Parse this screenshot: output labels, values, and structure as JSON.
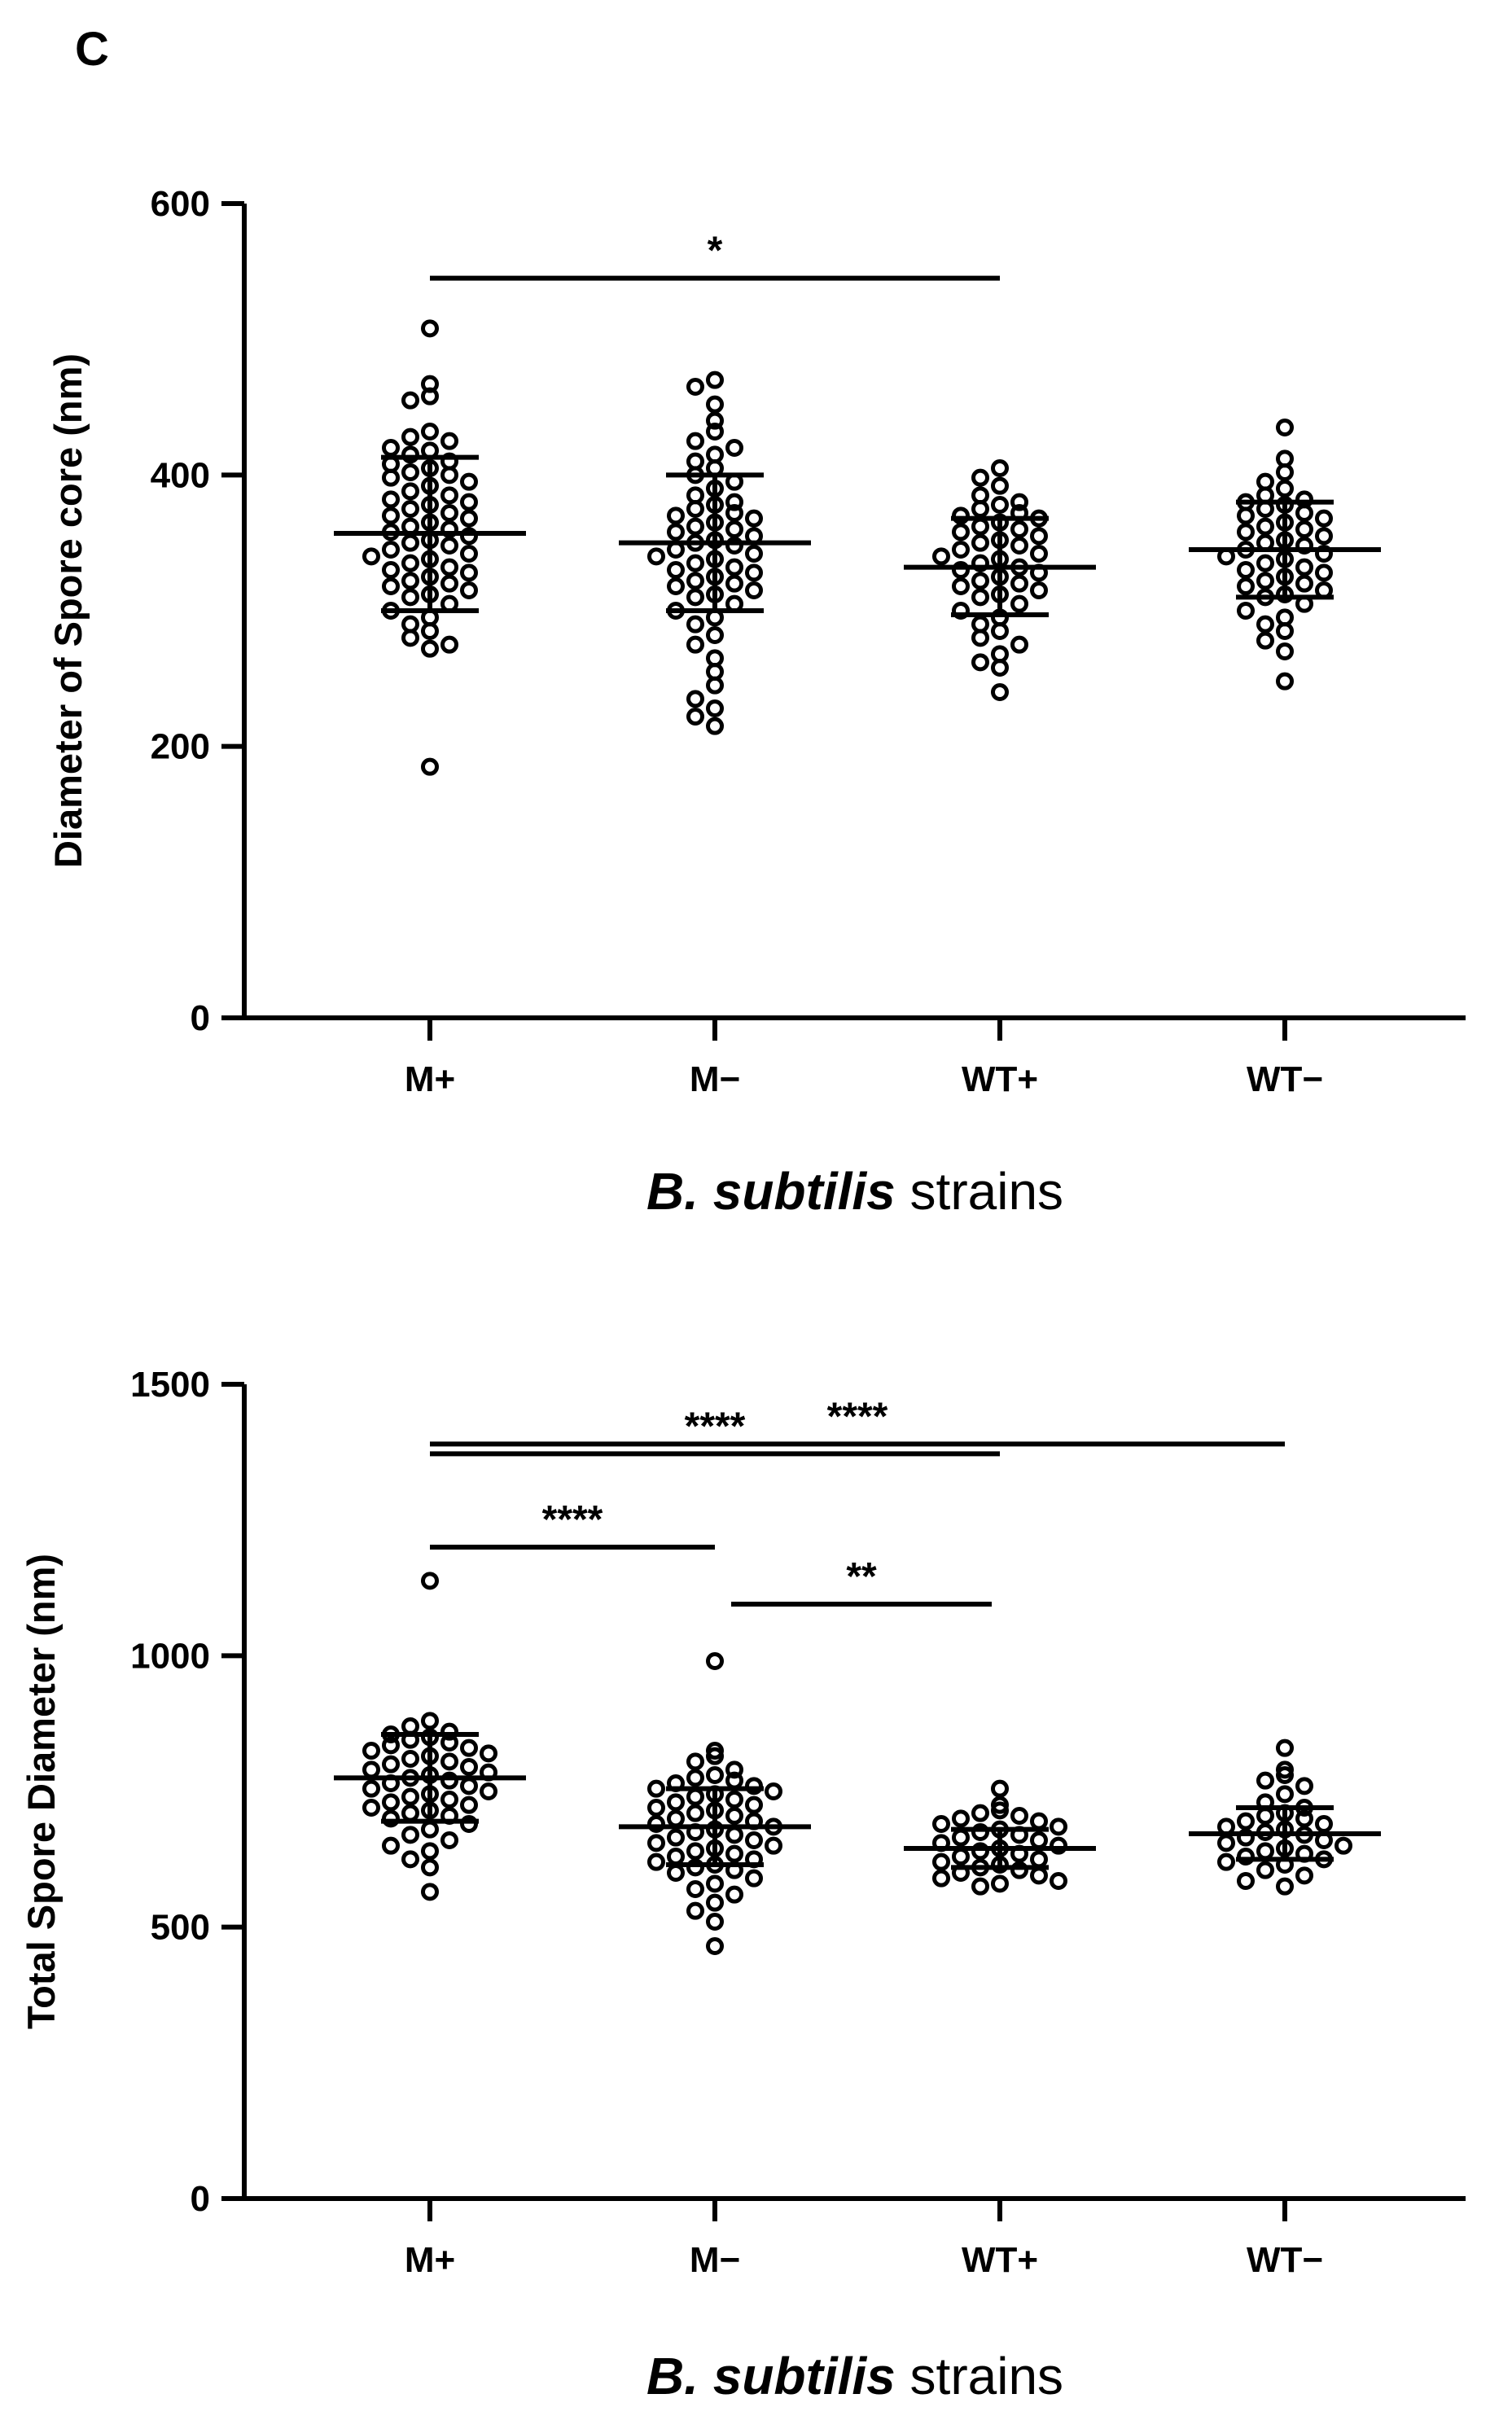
{
  "panel_label": "C",
  "chart_data": [
    {
      "type": "scatter",
      "ylabel": "Diameter of Spore core (nm)",
      "xlabel_italic": "B. subtilis",
      "xlabel_rest": " strains",
      "ylim": [
        0,
        600
      ],
      "yticks": [
        0,
        200,
        400,
        600
      ],
      "ytick_labels": [
        "0",
        "200",
        "400",
        "600"
      ],
      "categories": [
        "M+",
        "M−",
        "WT+",
        "WT−"
      ],
      "series": [
        {
          "values": [
            508,
            467,
            458,
            455,
            432,
            428,
            425,
            420,
            418,
            415,
            410,
            408,
            405,
            402,
            400,
            398,
            395,
            392,
            388,
            385,
            382,
            380,
            378,
            375,
            372,
            370,
            368,
            365,
            362,
            360,
            358,
            355,
            352,
            350,
            348,
            345,
            342,
            340,
            338,
            335,
            332,
            330,
            328,
            325,
            322,
            320,
            318,
            315,
            312,
            310,
            305,
            300,
            295,
            290,
            285,
            280,
            275,
            272,
            185
          ],
          "mean": 357,
          "sd_low": 300,
          "sd_high": 413
        },
        {
          "values": [
            470,
            465,
            452,
            440,
            432,
            425,
            420,
            415,
            410,
            405,
            400,
            395,
            390,
            385,
            380,
            378,
            375,
            372,
            370,
            368,
            365,
            362,
            360,
            358,
            355,
            352,
            350,
            348,
            345,
            342,
            340,
            338,
            335,
            332,
            330,
            328,
            325,
            322,
            320,
            318,
            315,
            312,
            310,
            305,
            300,
            295,
            290,
            282,
            275,
            265,
            255,
            245,
            235,
            228,
            222,
            215
          ],
          "mean": 350,
          "sd_low": 300,
          "sd_high": 400
        },
        {
          "values": [
            405,
            398,
            392,
            385,
            380,
            378,
            375,
            372,
            370,
            368,
            365,
            362,
            360,
            358,
            355,
            352,
            350,
            348,
            345,
            342,
            340,
            338,
            335,
            332,
            330,
            328,
            325,
            322,
            320,
            318,
            315,
            312,
            310,
            305,
            300,
            295,
            290,
            285,
            280,
            275,
            268,
            262,
            258,
            240
          ],
          "mean": 332,
          "sd_low": 297,
          "sd_high": 368
        },
        {
          "values": [
            435,
            412,
            402,
            395,
            390,
            385,
            382,
            380,
            378,
            375,
            372,
            370,
            368,
            365,
            362,
            360,
            358,
            355,
            352,
            350,
            348,
            345,
            342,
            340,
            338,
            335,
            332,
            330,
            328,
            325,
            322,
            320,
            318,
            315,
            312,
            310,
            305,
            300,
            295,
            290,
            285,
            278,
            270,
            248
          ],
          "mean": 345,
          "sd_low": 310,
          "sd_high": 380
        }
      ],
      "significance": [
        {
          "from": 0,
          "to": 2,
          "y": 545,
          "label": "*"
        }
      ]
    },
    {
      "type": "scatter",
      "ylabel": "Total Spore Diameter (nm)",
      "xlabel_italic": "B. subtilis",
      "xlabel_rest": " strains",
      "ylim": [
        0,
        1500
      ],
      "yticks": [
        0,
        500,
        1000,
        1500
      ],
      "ytick_labels": [
        "0",
        "500",
        "1000",
        "1500"
      ],
      "categories": [
        "M+",
        "M−",
        "WT+",
        "WT−"
      ],
      "series": [
        {
          "values": [
            1138,
            880,
            870,
            860,
            855,
            850,
            845,
            840,
            835,
            830,
            825,
            820,
            815,
            810,
            805,
            800,
            795,
            790,
            785,
            780,
            775,
            770,
            765,
            760,
            755,
            750,
            745,
            740,
            735,
            730,
            725,
            720,
            715,
            710,
            705,
            700,
            690,
            680,
            670,
            660,
            650,
            640,
            625,
            610,
            565
          ],
          "mean": 775,
          "sd_low": 695,
          "sd_high": 855
        },
        {
          "values": [
            990,
            825,
            815,
            805,
            790,
            780,
            775,
            770,
            765,
            760,
            755,
            750,
            745,
            740,
            735,
            730,
            725,
            720,
            715,
            710,
            705,
            700,
            695,
            690,
            685,
            680,
            675,
            670,
            665,
            660,
            655,
            650,
            645,
            640,
            635,
            630,
            625,
            620,
            615,
            610,
            605,
            600,
            590,
            580,
            570,
            560,
            545,
            530,
            510,
            465
          ],
          "mean": 685,
          "sd_low": 615,
          "sd_high": 755
        },
        {
          "values": [
            755,
            725,
            715,
            710,
            705,
            700,
            695,
            690,
            685,
            680,
            675,
            670,
            665,
            660,
            655,
            650,
            645,
            640,
            635,
            630,
            625,
            620,
            615,
            610,
            605,
            600,
            595,
            590,
            585,
            580,
            575
          ],
          "mean": 645,
          "sd_low": 610,
          "sd_high": 680
        },
        {
          "values": [
            830,
            790,
            780,
            770,
            760,
            745,
            730,
            720,
            710,
            705,
            700,
            695,
            690,
            685,
            680,
            675,
            670,
            665,
            660,
            655,
            650,
            645,
            640,
            635,
            630,
            625,
            620,
            615,
            605,
            595,
            585,
            575
          ],
          "mean": 672,
          "sd_low": 625,
          "sd_high": 720
        }
      ],
      "significance": [
        {
          "from": 0,
          "to": 3,
          "y": 1390,
          "label": "****"
        },
        {
          "from": 0,
          "to": 2,
          "y": 1372,
          "label": "****"
        },
        {
          "from": 0,
          "to": 1,
          "y": 1200,
          "label": "****"
        },
        {
          "from": 1,
          "to": 2,
          "y": 1095,
          "label": "**"
        }
      ]
    }
  ]
}
